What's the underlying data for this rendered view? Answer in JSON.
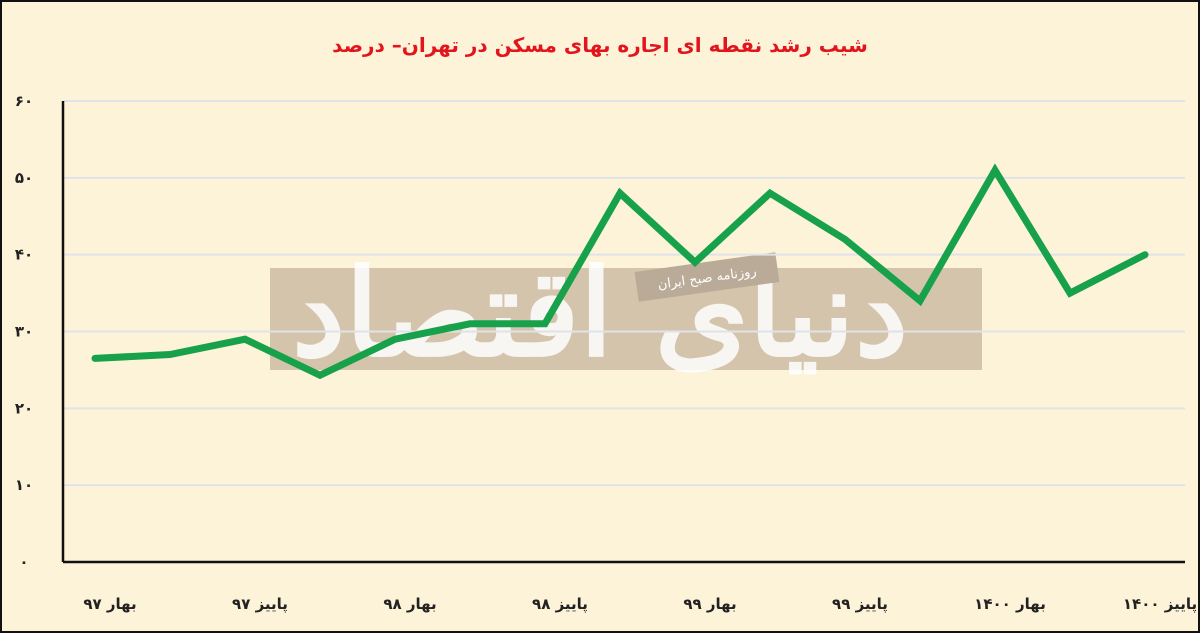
{
  "chart_data": {
    "type": "line",
    "title": "شیب رشد نقطه ای اجاره بهای مسکن در تهران– درصد",
    "xlabel": "",
    "ylabel": "",
    "ylim": [
      0,
      60
    ],
    "yticks": [
      0,
      10,
      20,
      30,
      40,
      50,
      60
    ],
    "ytick_labels": [
      "۰",
      "۱۰",
      "۲۰",
      "۳۰",
      "۴۰",
      "۵۰",
      "۶۰"
    ],
    "x_tick_labels": [
      "بهار ۹۷",
      "پاییز ۹۷",
      "بهار ۹۸",
      "پاییز ۹۸",
      "بهار ۹۹",
      "پاییز ۹۹",
      "بهار ۱۴۰۰",
      "پاییز ۱۴۰۰"
    ],
    "grid": true,
    "legend": "none",
    "series": [
      {
        "color": "#16a14a",
        "values": [
          26.5,
          27,
          29,
          24.3,
          29,
          31,
          31,
          48,
          39,
          48,
          42,
          34,
          51,
          35,
          40
        ]
      }
    ]
  },
  "watermark": {
    "brand": "دنیای اقتصاد",
    "tagline": "روزنامه صبح ایران"
  },
  "colors": {
    "background": "#fdf3d8",
    "line": "#16a14a",
    "title": "#e2141c",
    "grid": "#dfe3e8"
  }
}
